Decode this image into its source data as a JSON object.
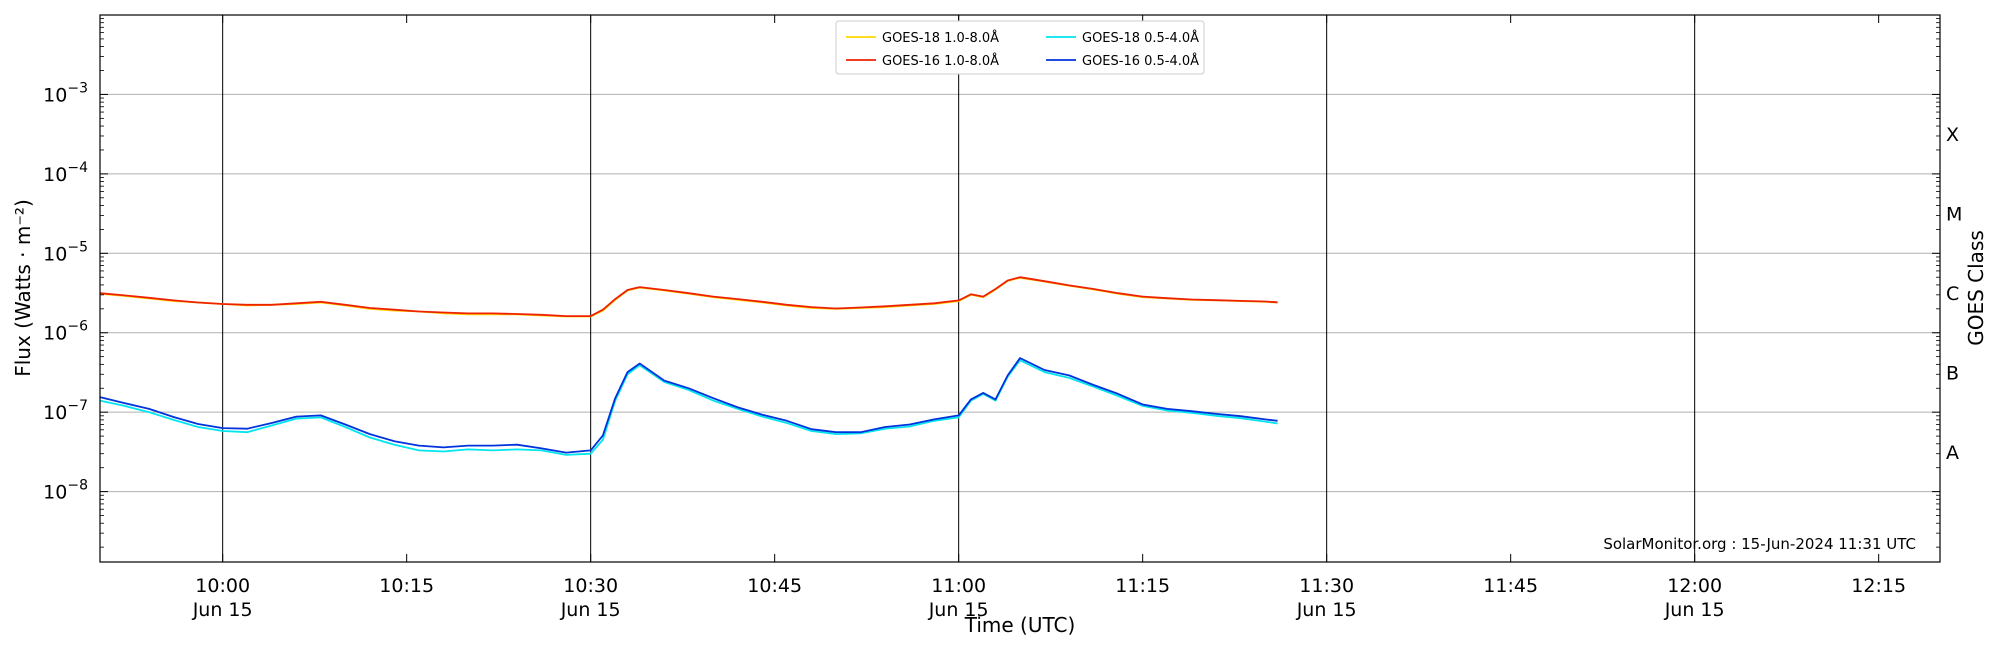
{
  "chart_data": {
    "type": "line",
    "xlabel": "Time (UTC)",
    "ylabel": "Flux (Watts · m⁻²)",
    "y2label": "GOES Class",
    "xlim": [
      "09:50",
      "12:20"
    ],
    "ylim": [
      1.3e-09,
      0.01
    ],
    "yscale": "log",
    "grid": "horizontal at y ticks, vertical at 30-minute marks",
    "legend_position": "top-center",
    "x_ticks": [
      {
        "t": "10:00",
        "label": "10:00",
        "sub": "Jun 15"
      },
      {
        "t": "10:15",
        "label": "10:15",
        "sub": ""
      },
      {
        "t": "10:30",
        "label": "10:30",
        "sub": "Jun 15"
      },
      {
        "t": "10:45",
        "label": "10:45",
        "sub": ""
      },
      {
        "t": "11:00",
        "label": "11:00",
        "sub": "Jun 15"
      },
      {
        "t": "11:15",
        "label": "11:15",
        "sub": ""
      },
      {
        "t": "11:30",
        "label": "11:30",
        "sub": "Jun 15"
      },
      {
        "t": "11:45",
        "label": "11:45",
        "sub": ""
      },
      {
        "t": "12:00",
        "label": "12:00",
        "sub": "Jun 15"
      },
      {
        "t": "12:15",
        "label": "12:15",
        "sub": ""
      }
    ],
    "vertical_grid_times": [
      "10:00",
      "10:30",
      "11:00",
      "11:30",
      "12:00"
    ],
    "y_ticks": [
      {
        "value": 1e-08,
        "exp": "−8"
      },
      {
        "value": 1e-07,
        "exp": "−7"
      },
      {
        "value": 1e-06,
        "exp": "−6"
      },
      {
        "value": 1e-05,
        "exp": "−5"
      },
      {
        "value": 0.0001,
        "exp": "−4"
      },
      {
        "value": 0.001,
        "exp": "−3"
      }
    ],
    "goes_classes": [
      {
        "label": "A",
        "value": 3.16e-08
      },
      {
        "label": "B",
        "value": 3.16e-07
      },
      {
        "label": "C",
        "value": 3.16e-06
      },
      {
        "label": "M",
        "value": 3.16e-05
      },
      {
        "label": "X",
        "value": 0.000316
      }
    ],
    "x": [
      "09:50",
      "09:52",
      "09:54",
      "09:56",
      "09:58",
      "10:00",
      "10:02",
      "10:04",
      "10:06",
      "10:08",
      "10:10",
      "10:12",
      "10:14",
      "10:16",
      "10:18",
      "10:20",
      "10:22",
      "10:24",
      "10:26",
      "10:28",
      "10:30",
      "10:31",
      "10:32",
      "10:33",
      "10:34",
      "10:36",
      "10:38",
      "10:40",
      "10:42",
      "10:44",
      "10:46",
      "10:48",
      "10:50",
      "10:52",
      "10:54",
      "10:56",
      "10:58",
      "11:00",
      "11:01",
      "11:02",
      "11:03",
      "11:04",
      "11:05",
      "11:07",
      "11:09",
      "11:11",
      "11:13",
      "11:15",
      "11:17",
      "11:19",
      "11:21",
      "11:23",
      "11:25",
      "11:26"
    ],
    "series": [
      {
        "name": "GOES-18 1.0-8.0Å",
        "color": "#ffd700",
        "values": [
          3.1e-06,
          2.9e-06,
          2.7e-06,
          2.5e-06,
          2.4e-06,
          2.3e-06,
          2.2e-06,
          2.25e-06,
          2.3e-06,
          2.4e-06,
          2.2e-06,
          2e-06,
          1.9e-06,
          1.85e-06,
          1.75e-06,
          1.7e-06,
          1.7e-06,
          1.7e-06,
          1.65e-06,
          1.6e-06,
          1.6e-06,
          1.9e-06,
          2.6e-06,
          3.4e-06,
          3.7e-06,
          3.4e-06,
          3.1e-06,
          2.8e-06,
          2.6e-06,
          2.4e-06,
          2.2e-06,
          2.05e-06,
          2e-06,
          2.05e-06,
          2.1e-06,
          2.2e-06,
          2.3e-06,
          2.5e-06,
          3e-06,
          2.8e-06,
          3.5e-06,
          4.5e-06,
          4.9e-06,
          4.4e-06,
          3.9e-06,
          3.5e-06,
          3.1e-06,
          2.8e-06,
          2.7e-06,
          2.6e-06,
          2.55e-06,
          2.5e-06,
          2.45e-06,
          2.4e-06
        ]
      },
      {
        "name": "GOES-16 1.0-8.0Å",
        "color": "#ee2200",
        "values": [
          3.15e-06,
          2.95e-06,
          2.75e-06,
          2.55e-06,
          2.4e-06,
          2.3e-06,
          2.25e-06,
          2.25e-06,
          2.35e-06,
          2.45e-06,
          2.25e-06,
          2.05e-06,
          1.95e-06,
          1.85e-06,
          1.8e-06,
          1.75e-06,
          1.75e-06,
          1.72e-06,
          1.68e-06,
          1.62e-06,
          1.62e-06,
          1.95e-06,
          2.65e-06,
          3.45e-06,
          3.75e-06,
          3.45e-06,
          3.15e-06,
          2.85e-06,
          2.65e-06,
          2.45e-06,
          2.25e-06,
          2.1e-06,
          2.02e-06,
          2.08e-06,
          2.15e-06,
          2.25e-06,
          2.35e-06,
          2.55e-06,
          3.05e-06,
          2.85e-06,
          3.55e-06,
          4.55e-06,
          5e-06,
          4.45e-06,
          3.95e-06,
          3.55e-06,
          3.15e-06,
          2.85e-06,
          2.72e-06,
          2.62e-06,
          2.57e-06,
          2.52e-06,
          2.47e-06,
          2.42e-06
        ]
      },
      {
        "name": "GOES-18 0.5-4.0Å",
        "color": "#00e5ee",
        "values": [
          1.4e-07,
          1.2e-07,
          1e-07,
          8e-08,
          6.5e-08,
          5.8e-08,
          5.6e-08,
          6.8e-08,
          8.3e-08,
          8.6e-08,
          6.5e-08,
          4.8e-08,
          3.9e-08,
          3.3e-08,
          3.2e-08,
          3.4e-08,
          3.3e-08,
          3.4e-08,
          3.3e-08,
          2.9e-08,
          3e-08,
          4.5e-08,
          1.4e-07,
          3e-07,
          3.9e-07,
          2.4e-07,
          1.9e-07,
          1.4e-07,
          1.1e-07,
          8.8e-08,
          7.3e-08,
          5.8e-08,
          5.3e-08,
          5.4e-08,
          6.2e-08,
          6.6e-08,
          7.8e-08,
          8.6e-08,
          1.4e-07,
          1.7e-07,
          1.4e-07,
          2.8e-07,
          4.5e-07,
          3.2e-07,
          2.7e-07,
          2.1e-07,
          1.6e-07,
          1.2e-07,
          1.05e-07,
          9.8e-08,
          9e-08,
          8.4e-08,
          7.6e-08,
          7.2e-08
        ]
      },
      {
        "name": "GOES-16 0.5-4.0Å",
        "color": "#0033dd",
        "values": [
          1.55e-07,
          1.3e-07,
          1.1e-07,
          8.7e-08,
          7.1e-08,
          6.3e-08,
          6.2e-08,
          7.3e-08,
          8.8e-08,
          9.1e-08,
          7e-08,
          5.3e-08,
          4.3e-08,
          3.8e-08,
          3.6e-08,
          3.8e-08,
          3.8e-08,
          3.9e-08,
          3.5e-08,
          3.1e-08,
          3.3e-08,
          5.1e-08,
          1.5e-07,
          3.2e-07,
          4.1e-07,
          2.5e-07,
          2e-07,
          1.5e-07,
          1.15e-07,
          9.3e-08,
          7.8e-08,
          6.1e-08,
          5.6e-08,
          5.6e-08,
          6.5e-08,
          7e-08,
          8.1e-08,
          9.1e-08,
          1.45e-07,
          1.75e-07,
          1.45e-07,
          2.9e-07,
          4.8e-07,
          3.4e-07,
          2.9e-07,
          2.2e-07,
          1.7e-07,
          1.25e-07,
          1.1e-07,
          1.03e-07,
          9.5e-08,
          8.9e-08,
          8.1e-08,
          7.8e-08
        ]
      }
    ]
  },
  "watermark": "SolarMonitor.org : 15-Jun-2024 11:31 UTC"
}
